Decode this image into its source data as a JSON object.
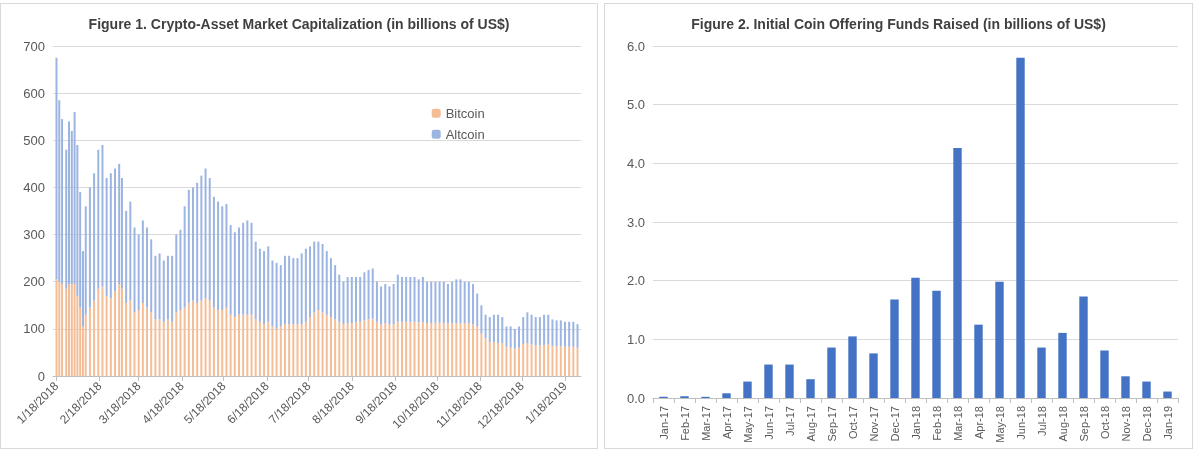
{
  "chart_data": [
    {
      "type": "bar",
      "title": "Figure 1. Crypto-Asset Market Capitalization (in billions of US$)",
      "stacked": true,
      "grid": "y",
      "legend": "top right",
      "x": [
        "2018-01-18",
        "2018-01-20",
        "2018-01-22",
        "2018-01-25",
        "2018-01-27",
        "2018-01-29",
        "2018-01-31",
        "2018-02-02",
        "2018-02-04",
        "2018-02-06",
        "2018-02-08",
        "2018-02-11",
        "2018-02-14",
        "2018-02-17",
        "2018-02-20",
        "2018-02-23",
        "2018-02-26",
        "2018-03-01",
        "2018-03-04",
        "2018-03-06",
        "2018-03-09",
        "2018-03-12",
        "2018-03-15",
        "2018-03-18",
        "2018-03-21",
        "2018-03-24",
        "2018-03-27",
        "2018-03-30",
        "2018-04-02",
        "2018-04-05",
        "2018-04-08",
        "2018-04-11",
        "2018-04-14",
        "2018-04-17",
        "2018-04-20",
        "2018-04-23",
        "2018-04-26",
        "2018-04-29",
        "2018-05-02",
        "2018-05-05",
        "2018-05-08",
        "2018-05-11",
        "2018-05-14",
        "2018-05-17",
        "2018-05-20",
        "2018-05-23",
        "2018-05-26",
        "2018-05-29",
        "2018-06-01",
        "2018-06-04",
        "2018-06-07",
        "2018-06-10",
        "2018-06-13",
        "2018-06-16",
        "2018-06-19",
        "2018-06-22",
        "2018-06-25",
        "2018-06-28",
        "2018-07-01",
        "2018-07-04",
        "2018-07-07",
        "2018-07-10",
        "2018-07-13",
        "2018-07-16",
        "2018-07-19",
        "2018-07-22",
        "2018-07-25",
        "2018-07-28",
        "2018-07-31",
        "2018-08-03",
        "2018-08-06",
        "2018-08-09",
        "2018-08-12",
        "2018-08-15",
        "2018-08-18",
        "2018-08-21",
        "2018-08-24",
        "2018-08-27",
        "2018-08-30",
        "2018-09-02",
        "2018-09-05",
        "2018-09-08",
        "2018-09-11",
        "2018-09-14",
        "2018-09-17",
        "2018-09-20",
        "2018-09-23",
        "2018-09-26",
        "2018-09-29",
        "2018-10-02",
        "2018-10-05",
        "2018-10-08",
        "2018-10-11",
        "2018-10-14",
        "2018-10-17",
        "2018-10-20",
        "2018-10-23",
        "2018-10-26",
        "2018-10-29",
        "2018-11-01",
        "2018-11-04",
        "2018-11-07",
        "2018-11-10",
        "2018-11-13",
        "2018-11-16",
        "2018-11-19",
        "2018-11-22",
        "2018-11-25",
        "2018-11-28",
        "2018-12-01",
        "2018-12-04",
        "2018-12-07",
        "2018-12-10",
        "2018-12-13",
        "2018-12-16",
        "2018-12-19",
        "2018-12-22",
        "2018-12-25",
        "2018-12-28",
        "2018-12-31",
        "2019-01-03",
        "2019-01-06",
        "2019-01-09",
        "2019-01-12",
        "2019-01-15",
        "2019-01-18",
        "2019-01-21",
        "2019-01-24",
        "2019-01-27"
      ],
      "series": [
        {
          "name": "Bitcoin",
          "color": "#f5bd96",
          "values": [
            205,
            200,
            195,
            185,
            195,
            195,
            195,
            170,
            145,
            105,
            130,
            145,
            160,
            185,
            190,
            170,
            165,
            180,
            195,
            185,
            155,
            160,
            135,
            140,
            155,
            145,
            135,
            120,
            120,
            115,
            120,
            115,
            135,
            140,
            145,
            155,
            160,
            155,
            160,
            165,
            160,
            145,
            140,
            140,
            145,
            130,
            125,
            130,
            130,
            130,
            130,
            120,
            115,
            110,
            115,
            105,
            100,
            105,
            110,
            110,
            110,
            110,
            110,
            115,
            125,
            135,
            140,
            135,
            130,
            125,
            120,
            115,
            110,
            112,
            112,
            115,
            115,
            118,
            120,
            122,
            115,
            110,
            112,
            110,
            110,
            115,
            115,
            115,
            115,
            115,
            114,
            114,
            112,
            112,
            113,
            113,
            112,
            112,
            112,
            112,
            112,
            112,
            112,
            110,
            105,
            90,
            80,
            72,
            72,
            70,
            70,
            62,
            60,
            58,
            60,
            68,
            70,
            67,
            65,
            65,
            66,
            68,
            64,
            63,
            63,
            62,
            62,
            62,
            60
          ]
        },
        {
          "name": "Altcoin",
          "color": "#9cb4e2",
          "values": [
            470,
            385,
            350,
            295,
            345,
            325,
            365,
            320,
            245,
            160,
            230,
            255,
            270,
            295,
            300,
            250,
            265,
            260,
            255,
            235,
            195,
            210,
            180,
            160,
            175,
            170,
            155,
            135,
            140,
            130,
            135,
            140,
            165,
            170,
            215,
            240,
            240,
            255,
            265,
            275,
            260,
            235,
            230,
            220,
            220,
            190,
            180,
            185,
            195,
            200,
            195,
            165,
            155,
            155,
            160,
            140,
            140,
            130,
            145,
            145,
            140,
            140,
            150,
            155,
            150,
            150,
            145,
            145,
            135,
            125,
            115,
            100,
            90,
            98,
            98,
            95,
            95,
            102,
            105,
            106,
            85,
            80,
            83,
            80,
            85,
            100,
            95,
            95,
            95,
            95,
            91,
            96,
            88,
            88,
            87,
            87,
            88,
            83,
            88,
            93,
            93,
            88,
            88,
            85,
            70,
            60,
            50,
            53,
            58,
            60,
            55,
            43,
            45,
            42,
            45,
            57,
            65,
            63,
            60,
            60,
            64,
            62,
            56,
            55,
            55,
            53,
            53,
            53,
            50
          ]
        }
      ],
      "xlim": [
        "2018-01-16",
        "2019-01-29"
      ],
      "xticks": [
        {
          "value": "2018-01-18",
          "label": "1/18/2018"
        },
        {
          "value": "2018-02-18",
          "label": "2/18/2018"
        },
        {
          "value": "2018-03-18",
          "label": "3/18/2018"
        },
        {
          "value": "2018-04-18",
          "label": "4/18/2018"
        },
        {
          "value": "2018-05-18",
          "label": "5/18/2018"
        },
        {
          "value": "2018-06-18",
          "label": "6/18/2018"
        },
        {
          "value": "2018-07-18",
          "label": "7/18/2018"
        },
        {
          "value": "2018-08-18",
          "label": "8/18/2018"
        },
        {
          "value": "2018-09-18",
          "label": "9/18/2018"
        },
        {
          "value": "2018-10-18",
          "label": "10/18/2018"
        },
        {
          "value": "2018-11-18",
          "label": "11/18/2018"
        },
        {
          "value": "2018-12-18",
          "label": "12/18/2018"
        },
        {
          "value": "2019-01-18",
          "label": "1/18/2019"
        }
      ],
      "ylim": [
        0,
        700
      ],
      "yticks": [
        0,
        100,
        200,
        300,
        400,
        500,
        600,
        700
      ]
    },
    {
      "type": "bar",
      "title": "Figure 2. Initial Coin Offering Funds Raised (in billions of US$)",
      "grid": "y",
      "categories": [
        "Jan-17",
        "Feb-17",
        "Mar-17",
        "Apr-17",
        "May-17",
        "Jun-17",
        "Jul-17",
        "Aug-17",
        "Sep-17",
        "Oct-17",
        "Nov-17",
        "Dec-17",
        "Jan-18",
        "Feb-18",
        "Mar-18",
        "Apr-18",
        "May-18",
        "Jun-18",
        "Jul-18",
        "Aug-18",
        "Sep-18",
        "Oct-18",
        "Nov-18",
        "Dec-18",
        "Jan-19"
      ],
      "series": [
        {
          "color": "#4472c4",
          "values": [
            0.02,
            0.03,
            0.02,
            0.08,
            0.28,
            0.57,
            0.57,
            0.32,
            0.86,
            1.05,
            0.76,
            1.68,
            2.05,
            1.83,
            4.26,
            1.25,
            1.98,
            5.8,
            0.86,
            1.11,
            1.73,
            0.81,
            0.37,
            0.28,
            0.11
          ]
        }
      ],
      "ylim": [
        0,
        6
      ],
      "yticks": [
        {
          "value": 0,
          "label": "0.0"
        },
        {
          "value": 1,
          "label": "1.0"
        },
        {
          "value": 2,
          "label": "2.0"
        },
        {
          "value": 3,
          "label": "3.0"
        },
        {
          "value": 4,
          "label": "4.0"
        },
        {
          "value": 5,
          "label": "5.0"
        },
        {
          "value": 6,
          "label": "6.0"
        }
      ]
    }
  ]
}
